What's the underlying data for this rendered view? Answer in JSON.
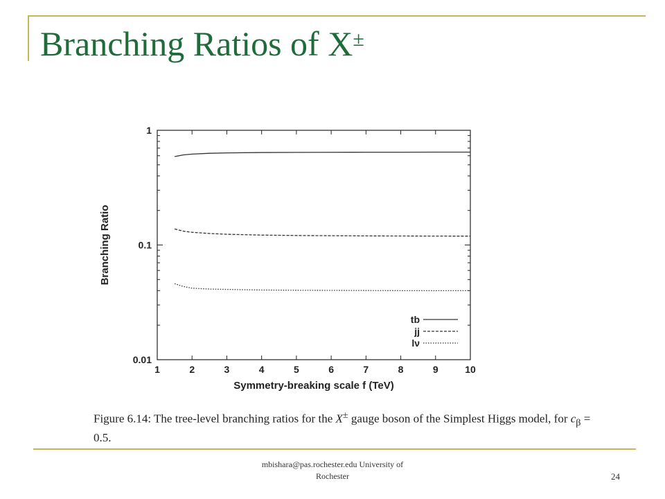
{
  "slide": {
    "title_main": "Branching Ratios of X",
    "title_sup": "±",
    "caption_prefix": "Figure 6.14:  The tree-level branching ratios for the ",
    "caption_symbol": "X",
    "caption_symbol_sup": "±",
    "caption_middle": " gauge boson of the Simplest Higgs model, for ",
    "caption_param": "c",
    "caption_param_sub": "β",
    "caption_suffix": " = 0.5.",
    "footer_line1": "mbishara@pas.rochester.edu University of",
    "footer_line2": "Rochester",
    "page_number": "24",
    "accent_color": "#c9b458",
    "title_color": "#1f6b3a"
  },
  "chart_data": {
    "type": "line",
    "xlabel": "Symmetry-breaking scale f (TeV)",
    "ylabel": "Branching Ratio",
    "xlim": [
      1,
      10
    ],
    "ylim": [
      0.01,
      1
    ],
    "yscale": "log",
    "x_ticks": [
      1,
      2,
      3,
      4,
      5,
      6,
      7,
      8,
      9,
      10
    ],
    "y_ticks": [
      {
        "value": 0.01,
        "label": "0.01"
      },
      {
        "value": 0.1,
        "label": "0.1"
      },
      {
        "value": 1,
        "label": "1"
      }
    ],
    "grid": false,
    "legend_position": "bottom-right",
    "series": [
      {
        "name": "tb",
        "style": "solid",
        "x": [
          1.5,
          1.75,
          2,
          2.5,
          3,
          4,
          5,
          6,
          7,
          8,
          9,
          10
        ],
        "y": [
          0.59,
          0.61,
          0.62,
          0.63,
          0.635,
          0.64,
          0.642,
          0.643,
          0.644,
          0.644,
          0.645,
          0.645
        ]
      },
      {
        "name": "jj",
        "style": "dashed",
        "x": [
          1.5,
          1.75,
          2,
          2.5,
          3,
          4,
          5,
          6,
          7,
          8,
          9,
          10
        ],
        "y": [
          0.138,
          0.132,
          0.129,
          0.126,
          0.124,
          0.122,
          0.121,
          0.1205,
          0.12,
          0.1198,
          0.1196,
          0.1195
        ]
      },
      {
        "name": "lν",
        "style": "dotted",
        "x": [
          1.5,
          1.75,
          2,
          2.5,
          3,
          4,
          5,
          6,
          7,
          8,
          9,
          10
        ],
        "y": [
          0.046,
          0.0435,
          0.042,
          0.0413,
          0.041,
          0.0405,
          0.0403,
          0.0402,
          0.0401,
          0.04,
          0.04,
          0.04
        ]
      }
    ]
  }
}
